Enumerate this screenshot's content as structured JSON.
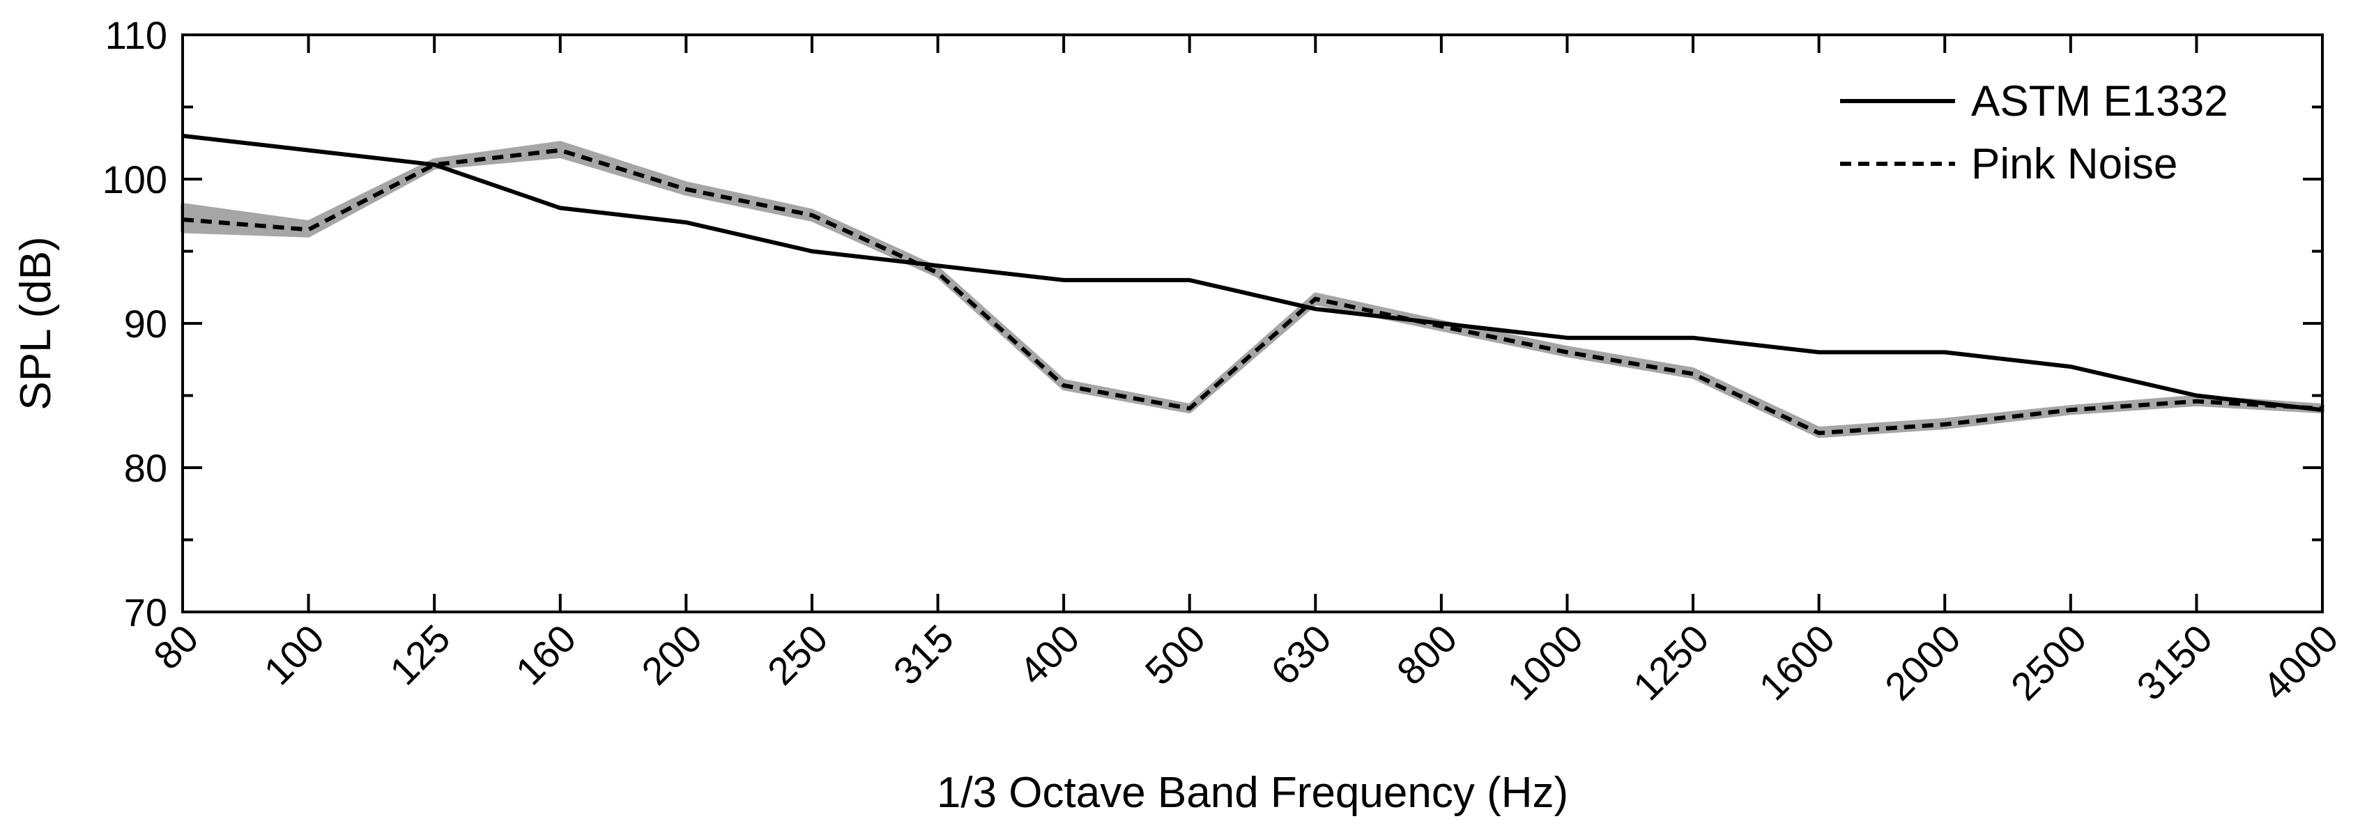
{
  "chart_data": {
    "type": "line",
    "title": "",
    "xlabel": "1/3 Octave Band Frequency (Hz)",
    "ylabel": "SPL (dB)",
    "ylim": [
      70,
      110
    ],
    "yticks": [
      70,
      80,
      90,
      100,
      110
    ],
    "categories": [
      "80",
      "100",
      "125",
      "160",
      "200",
      "250",
      "315",
      "400",
      "500",
      "630",
      "800",
      "1000",
      "1250",
      "1600",
      "2000",
      "2500",
      "3150",
      "4000"
    ],
    "grid": false,
    "legend_position": "top-right",
    "series": [
      {
        "name": "ASTM E1332",
        "style": "solid",
        "color": "#000000",
        "values": [
          103,
          102,
          101,
          98,
          97,
          95,
          94,
          93,
          93,
          91,
          90,
          89,
          89,
          88,
          88,
          87,
          85,
          84
        ]
      },
      {
        "name": "Pink Noise",
        "style": "dashed",
        "color": "#000000",
        "band_color": "#a6a6a6",
        "values": [
          97.2,
          96.5,
          101,
          102,
          99.3,
          97.5,
          93.5,
          85.7,
          84.1,
          91.7,
          89.8,
          88,
          86.5,
          82.4,
          83,
          84,
          84.6,
          84.1
        ],
        "band_lower": [
          96.4,
          96.1,
          100.8,
          101.6,
          99,
          97.2,
          93.3,
          85.5,
          83.9,
          91.4,
          89.6,
          87.8,
          86.3,
          82.2,
          82.8,
          83.8,
          84.4,
          83.9
        ],
        "band_upper": [
          98.2,
          97,
          101.3,
          102.5,
          99.7,
          97.8,
          93.8,
          86,
          84.3,
          92,
          90.1,
          88.3,
          86.8,
          82.7,
          83.3,
          84.2,
          84.9,
          84.3
        ]
      }
    ]
  }
}
